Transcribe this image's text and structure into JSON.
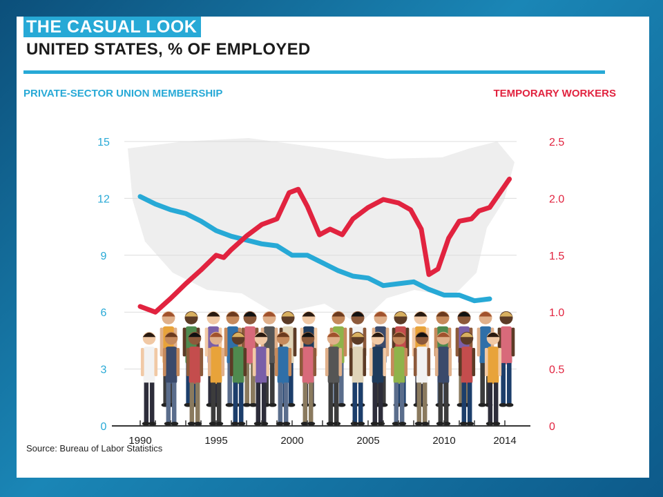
{
  "header": {
    "title": "THE CASUAL LOOK",
    "subtitle": "UNITED STATES, % OF EMPLOYED"
  },
  "footer": {
    "source": "Source: Bureau of Labor Statistics"
  },
  "colors": {
    "union": "#27a9d6",
    "temporary": "#e1233f",
    "accent": "#27a9d6"
  },
  "chart_data": {
    "type": "line",
    "title": "",
    "xlabel": "",
    "left_axis_label": "PRIVATE-SECTOR UNION MEMBERSHIP",
    "right_axis_label": "TEMPORARY WORKERS",
    "xlim": [
      1990,
      2014
    ],
    "x_ticks": [
      "1990",
      "1995",
      "2000",
      "2005",
      "2010",
      "2014"
    ],
    "left_ylim": [
      0,
      15
    ],
    "left_ticks": [
      "0",
      "3",
      "6",
      "9",
      "12",
      "15"
    ],
    "right_ylim": [
      0,
      2.5
    ],
    "right_ticks": [
      "0",
      "0.5",
      "1.0",
      "1.5",
      "2.0",
      "2.5"
    ],
    "grid": true,
    "series": [
      {
        "name": "PRIVATE-SECTOR UNION MEMBERSHIP",
        "axis": "left",
        "x": [
          1990,
          1991,
          1992,
          1993,
          1994,
          1995,
          1996,
          1997,
          1998,
          1999,
          2000,
          2001,
          2002,
          2003,
          2004,
          2005,
          2006,
          2007,
          2008,
          2009,
          2010,
          2011,
          2012,
          2013
        ],
        "values": [
          12.1,
          11.7,
          11.4,
          11.2,
          10.8,
          10.3,
          10.0,
          9.8,
          9.6,
          9.5,
          9.0,
          9.0,
          8.6,
          8.2,
          7.9,
          7.8,
          7.4,
          7.5,
          7.6,
          7.2,
          6.9,
          6.9,
          6.6,
          6.7
        ]
      },
      {
        "name": "TEMPORARY WORKERS",
        "axis": "right",
        "x": [
          1990,
          1991,
          1992,
          1993,
          1994,
          1995,
          1995.5,
          1996,
          1997,
          1998,
          1999,
          1999.8,
          2000.4,
          2001,
          2001.8,
          2002.5,
          2003.3,
          2004,
          2005,
          2006,
          2007,
          2007.8,
          2008.5,
          2009,
          2009.6,
          2010.3,
          2011,
          2011.8,
          2012.3,
          2013,
          2014.3
        ],
        "values": [
          1.05,
          1.0,
          1.12,
          1.25,
          1.37,
          1.5,
          1.48,
          1.55,
          1.67,
          1.77,
          1.82,
          2.05,
          2.08,
          1.93,
          1.68,
          1.73,
          1.68,
          1.82,
          1.92,
          1.99,
          1.96,
          1.9,
          1.73,
          1.33,
          1.38,
          1.65,
          1.8,
          1.82,
          1.89,
          1.92,
          2.17
        ]
      }
    ]
  }
}
